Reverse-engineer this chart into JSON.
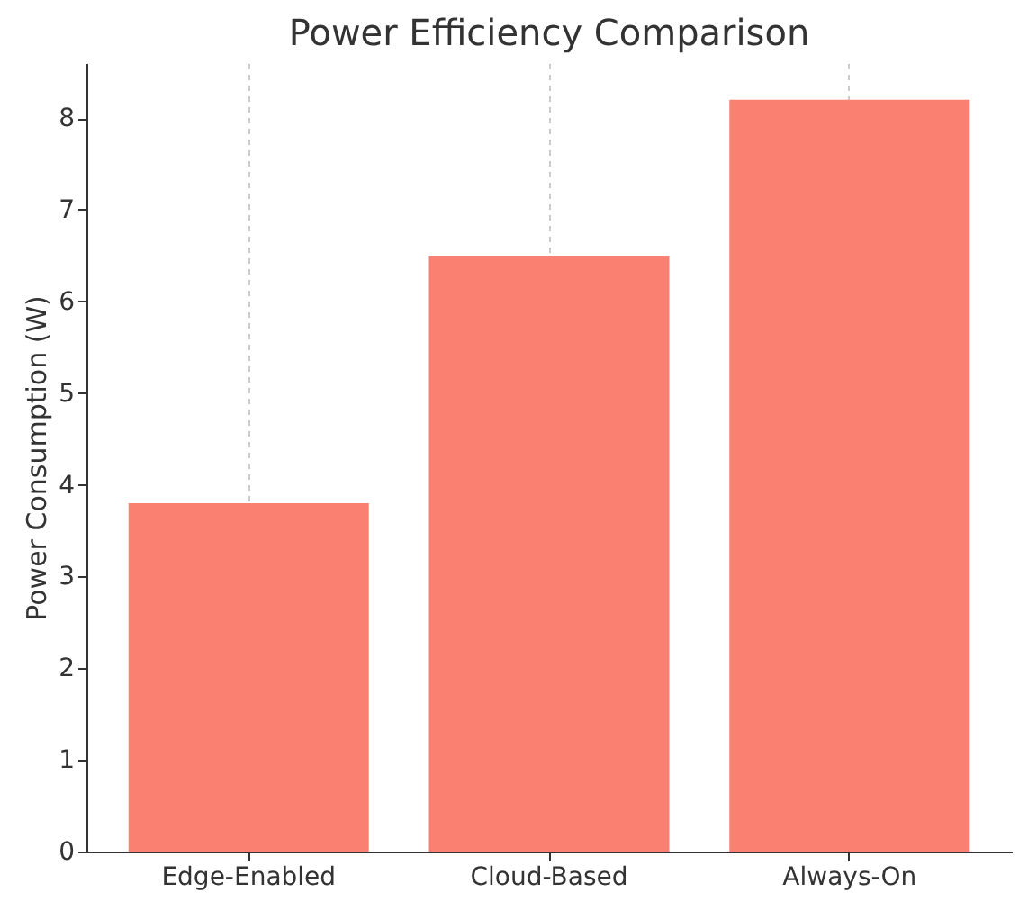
{
  "chart_data": {
    "type": "bar",
    "title": "Power Efficiency Comparison",
    "ylabel": "Power Consumption (W)",
    "categories": [
      "Edge-Enabled",
      "Cloud-Based",
      "Always-On"
    ],
    "values": [
      3.8,
      6.5,
      8.2
    ],
    "color": "#fa8072",
    "ylim": [
      0,
      8.6
    ],
    "yticks": [
      0,
      1,
      2,
      3,
      4,
      5,
      6,
      7,
      8
    ],
    "grid": "x"
  }
}
